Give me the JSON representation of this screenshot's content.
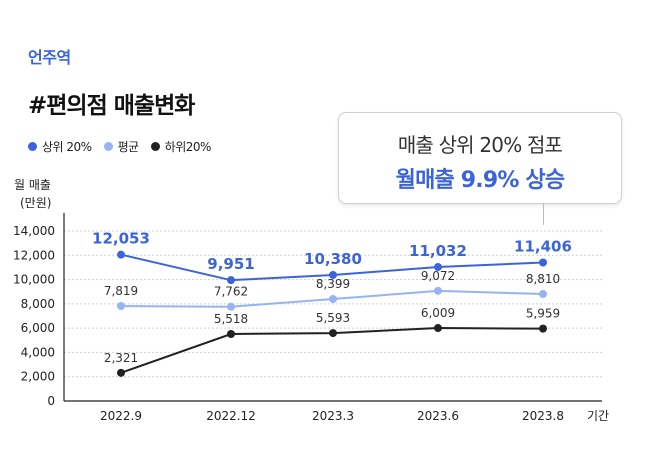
{
  "header": {
    "location": "언주역",
    "title": "#편의점 매출변화"
  },
  "callout": {
    "line1": "매출 상위 20% 점포",
    "line2": "월매출 9.9% 상승"
  },
  "colors": {
    "top20": "#3b63db",
    "average": "#97b3f2",
    "bottom20": "#222222",
    "grid": "#d0d0d0"
  },
  "chart_data": {
    "type": "line",
    "ylabel_line1": "월 매출",
    "ylabel_line2": "(만원)",
    "xlabel": "기간",
    "categories": [
      "2022.9",
      "2022.12",
      "2023.3",
      "2023.6",
      "2023.8"
    ],
    "ylim": [
      0,
      14000
    ],
    "yticks": [
      0,
      2000,
      4000,
      6000,
      8000,
      10000,
      12000,
      14000
    ],
    "ytick_labels": [
      "0",
      "2,000",
      "4,000",
      "6,000",
      "8,000",
      "10,000",
      "12,000",
      "14,000"
    ],
    "grid": true,
    "legend_position": "top-left",
    "series": [
      {
        "key": "top20",
        "name": "상위 20%",
        "color": "#3b63db",
        "values": [
          12053,
          9951,
          10380,
          11032,
          11406
        ],
        "labels": [
          "12,053",
          "9,951",
          "10,380",
          "11,032",
          "11,406"
        ]
      },
      {
        "key": "average",
        "name": "평균",
        "color": "#97b3f2",
        "values": [
          7819,
          7762,
          8399,
          9072,
          8810
        ],
        "labels": [
          "7,819",
          "7,762",
          "8,399",
          "9,072",
          "8,810"
        ]
      },
      {
        "key": "bottom20",
        "name": "하위20%",
        "color": "#222222",
        "values": [
          2321,
          5518,
          5593,
          6009,
          5959
        ],
        "labels": [
          "2,321",
          "5,518",
          "5,593",
          "6,009",
          "5,959"
        ]
      }
    ]
  }
}
